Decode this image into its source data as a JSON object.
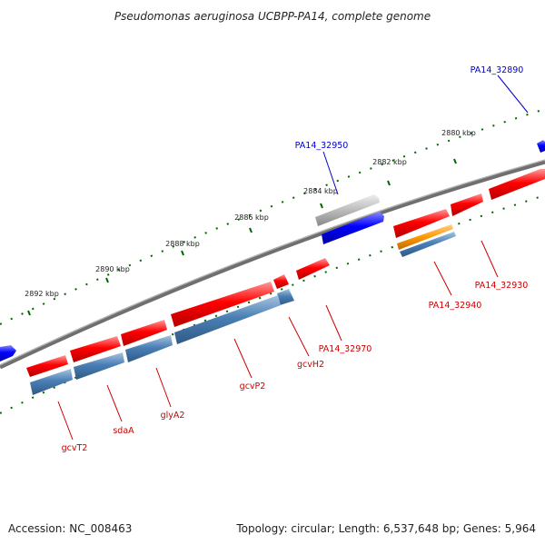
{
  "title": "Pseudomonas aeruginosa UCBPP-PA14, complete genome",
  "footer": {
    "accession": "Accession: NC_008463",
    "topology": "Topology: circular; Length: 6,537,648 bp; Genes: 5,964"
  },
  "colors": {
    "backbone": "#777777",
    "forward_red": "#ff0000",
    "reverse_blue": "#0000ff",
    "steelblue": "#4a7fb5",
    "gray": "#aaaaaa",
    "orange": "#ff9900",
    "ruler": "#006600",
    "label_red": "#cc0000",
    "label_blue": "#0000cc"
  },
  "ruler_ticks": [
    {
      "label": "2880 kbp"
    },
    {
      "label": "2882 kbp"
    },
    {
      "label": "2884 kbp"
    },
    {
      "label": "2886 kbp"
    },
    {
      "label": "2888 kbp"
    },
    {
      "label": "2890 kbp"
    },
    {
      "label": "2892 kbp"
    }
  ],
  "gene_labels": {
    "pa14_32890": "PA14_32890",
    "pa14_32950": "PA14_32950",
    "pa14_32930": "PA14_32930",
    "pa14_32940": "PA14_32940",
    "pa14_32970": "PA14_32970",
    "gcvh2": "gcvH2",
    "gcvp2": "gcvP2",
    "glya2": "glyA2",
    "sdaa": "sdaA",
    "gcvt2": "gcvT2"
  }
}
